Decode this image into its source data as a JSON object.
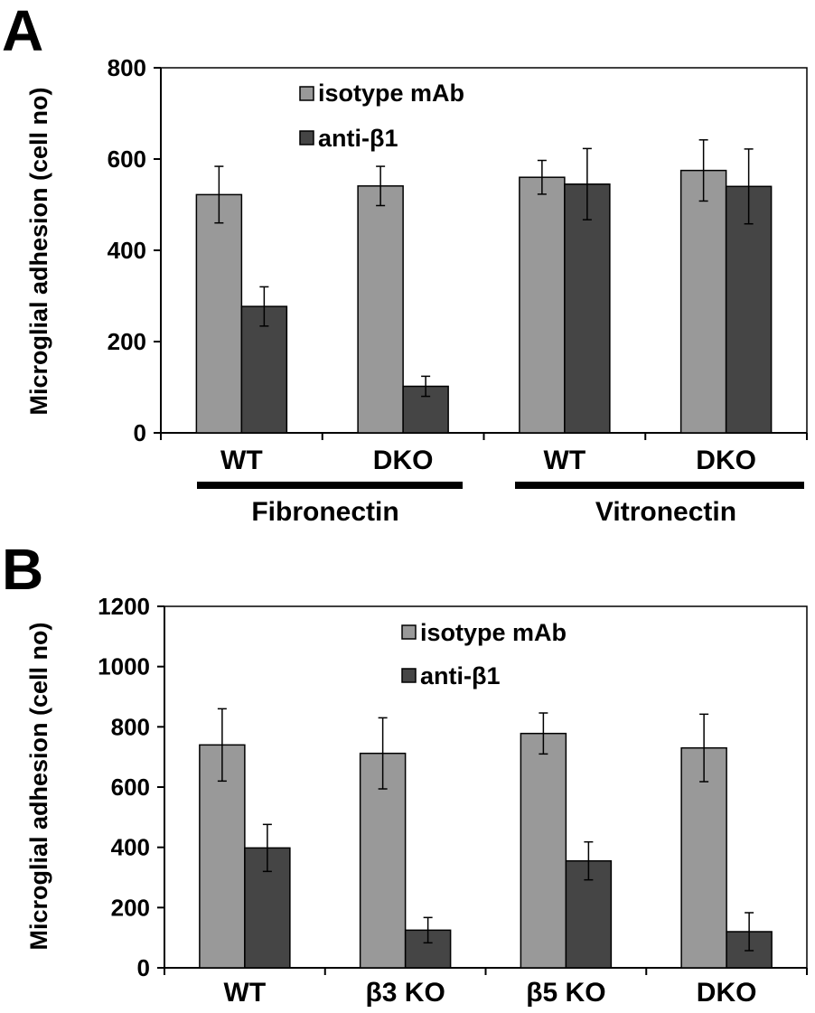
{
  "panels": {
    "a": {
      "letter": "A",
      "ylabel": "Microglial adhesion (cell no)",
      "ticks": [
        "0",
        "200",
        "400",
        "600",
        "800"
      ],
      "legend": {
        "isotype": "isotype mAb",
        "anti": "anti-β1"
      },
      "groups": {
        "fibronectin": "Fibronectin",
        "vitronectin": "Vitronectin"
      }
    },
    "b": {
      "letter": "B",
      "ylabel": "Microglial adhesion (cell no)",
      "ticks": [
        "0",
        "200",
        "400",
        "600",
        "800",
        "1000",
        "1200"
      ],
      "legend": {
        "isotype": "isotype mAb",
        "anti": "anti-β1"
      }
    }
  },
  "colors": {
    "isotype": "#999999",
    "anti": "#454545"
  },
  "chart_data": [
    {
      "type": "bar",
      "title": "",
      "xlabel": "",
      "ylabel": "Microglial adhesion (cell no)",
      "ylim": [
        0,
        800
      ],
      "grid": false,
      "legend_position": "top-left",
      "categories": [
        "WT",
        "DKO",
        "WT",
        "DKO"
      ],
      "category_groups": [
        {
          "name": "Fibronectin",
          "categories": [
            0,
            1
          ]
        },
        {
          "name": "Vitronectin",
          "categories": [
            2,
            3
          ]
        }
      ],
      "series": [
        {
          "name": "isotype mAb",
          "values": [
            522,
            541,
            560,
            575
          ],
          "errors": [
            62,
            43,
            37,
            67
          ]
        },
        {
          "name": "anti-β1",
          "values": [
            277,
            102,
            545,
            540
          ],
          "errors": [
            43,
            22,
            78,
            82
          ]
        }
      ]
    },
    {
      "type": "bar",
      "title": "",
      "xlabel": "",
      "ylabel": "Microglial adhesion (cell no)",
      "ylim": [
        0,
        1200
      ],
      "grid": false,
      "legend_position": "top-center",
      "categories": [
        "WT",
        "β3 KO",
        "β5 KO",
        "DKO"
      ],
      "series": [
        {
          "name": "isotype mAb",
          "values": [
            740,
            712,
            778,
            730
          ],
          "errors": [
            120,
            118,
            68,
            112
          ]
        },
        {
          "name": "anti-β1",
          "values": [
            398,
            125,
            355,
            120
          ],
          "errors": [
            78,
            42,
            63,
            63
          ]
        }
      ]
    }
  ]
}
